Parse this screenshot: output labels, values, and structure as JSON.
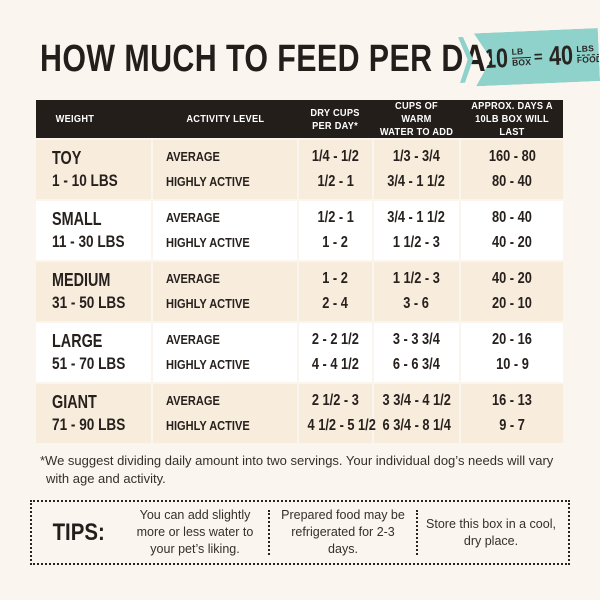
{
  "colors": {
    "page_bg": "#faf5ee",
    "accent_teal": "#8ed2cb",
    "header_bg": "#241e1b",
    "row_beige": "#f8ecdd",
    "row_white": "#ffffff",
    "text_dark": "#231e1b"
  },
  "header": {
    "title": "HOW MUCH TO FEED PER DAY",
    "badge": {
      "big1": "10",
      "stack1_top": "LB",
      "stack1_bottom": "BOX",
      "equals": "=",
      "big2": "40",
      "stack2_top": "LBS",
      "stack2_of": "of",
      "stack2_bottom": "FOOD!"
    }
  },
  "table": {
    "columns": [
      "WEIGHT",
      "ACTIVITY LEVEL",
      "DRY CUPS\nPER DAY*",
      "CUPS OF WARM\nWATER TO ADD",
      "APPROX. DAYS A\n10LB BOX WILL LAST"
    ],
    "rows": [
      {
        "weight": "TOY",
        "range": "1 - 10 LBS",
        "average": {
          "label": "AVERAGE",
          "dry": "1/4 - 1/2",
          "water": "1/3 - 3/4",
          "days": "160 - 80"
        },
        "highly_active": {
          "label": "HIGHLY ACTIVE",
          "dry": "1/2 - 1",
          "water": "3/4 - 1 1/2",
          "days": "80 - 40"
        }
      },
      {
        "weight": "SMALL",
        "range": "11 - 30 LBS",
        "average": {
          "label": "AVERAGE",
          "dry": "1/2 - 1",
          "water": "3/4 - 1 1/2",
          "days": "80 - 40"
        },
        "highly_active": {
          "label": "HIGHLY ACTIVE",
          "dry": "1 - 2",
          "water": "1 1/2 - 3",
          "days": "40 - 20"
        }
      },
      {
        "weight": "MEDIUM",
        "range": "31 - 50 LBS",
        "average": {
          "label": "AVERAGE",
          "dry": "1 - 2",
          "water": "1 1/2 - 3",
          "days": "40 - 20"
        },
        "highly_active": {
          "label": "HIGHLY ACTIVE",
          "dry": "2 - 4",
          "water": "3 - 6",
          "days": "20 - 10"
        }
      },
      {
        "weight": "LARGE",
        "range": "51 - 70 LBS",
        "average": {
          "label": "AVERAGE",
          "dry": "2 - 2 1/2",
          "water": "3 - 3 3/4",
          "days": "20 - 16"
        },
        "highly_active": {
          "label": "HIGHLY ACTIVE",
          "dry": "4 - 4 1/2",
          "water": "6 - 6 3/4",
          "days": "10 - 9"
        }
      },
      {
        "weight": "GIANT",
        "range": "71 - 90 LBS",
        "average": {
          "label": "AVERAGE",
          "dry": "2 1/2 - 3",
          "water": "3 3/4 - 4 1/2",
          "days": "16 - 13"
        },
        "highly_active": {
          "label": "HIGHLY ACTIVE",
          "dry": "4 1/2 - 5 1/2",
          "water": "6 3/4 - 8 1/4",
          "days": "9 - 7"
        }
      }
    ]
  },
  "footnote": "*We suggest dividing daily amount into two servings. Your individual dog’s needs will vary with age and activity.",
  "tips": {
    "label": "TIPS:",
    "items": [
      "You can add slightly more or less water to your pet’s liking.",
      "Prepared food may be refrigerated for 2-3 days.",
      "Store this box in a cool, dry place."
    ]
  }
}
